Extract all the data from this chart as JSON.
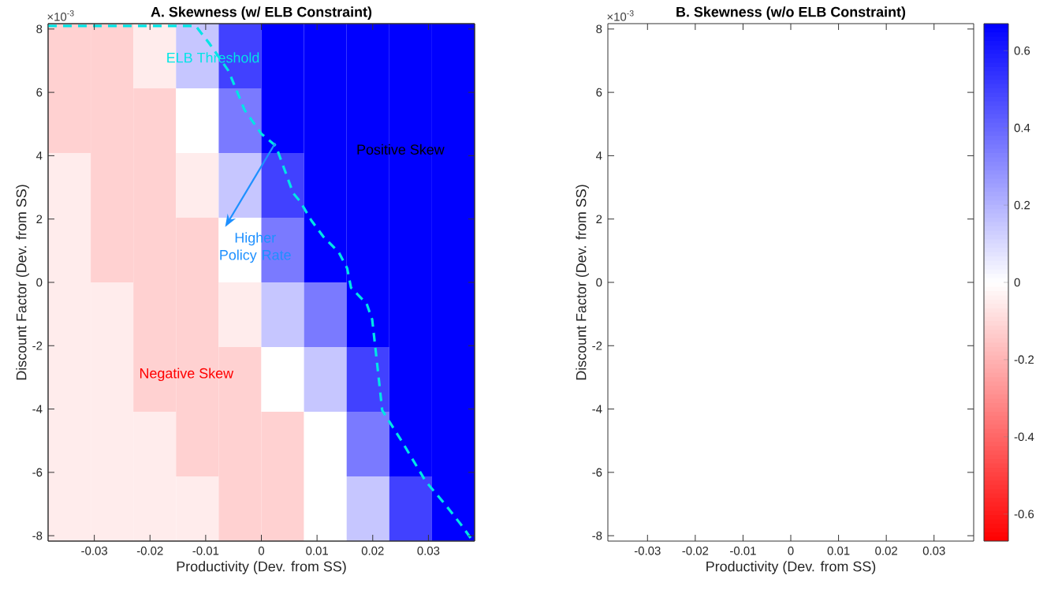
{
  "chart_data": [
    {
      "type": "heatmap",
      "categories": [
        null,
        null,
        null,
        null,
        null,
        null,
        null,
        null,
        null,
        null
      ],
      "y_categories": [
        null,
        null,
        null,
        null,
        null,
        null,
        null,
        null
      ],
      "clim": [
        -0.67,
        0.67
      ],
      "cticks": [
        -0.6,
        -0.4,
        -0.2,
        0,
        0.2,
        0.4,
        0.6
      ],
      "cells": [
        [
          -0.12,
          -0.12,
          -0.05,
          0.15,
          0.5,
          0.67,
          0.67,
          0.67,
          0.67,
          0.67
        ],
        [
          -0.12,
          -0.12,
          -0.12,
          0,
          0.35,
          0.67,
          0.67,
          0.67,
          0.67,
          0.67
        ],
        [
          -0.05,
          -0.12,
          -0.12,
          -0.05,
          0.15,
          0.5,
          0.67,
          0.67,
          0.67,
          0.67
        ],
        [
          -0.05,
          -0.12,
          -0.12,
          -0.12,
          0,
          0.35,
          0.67,
          0.67,
          0.67,
          0.67
        ],
        [
          -0.05,
          -0.05,
          -0.12,
          -0.12,
          -0.05,
          0.15,
          0.35,
          0.67,
          0.67,
          0.67
        ],
        [
          -0.05,
          -0.05,
          -0.12,
          -0.12,
          -0.12,
          0,
          0.15,
          0.5,
          0.67,
          0.67
        ],
        [
          -0.05,
          -0.05,
          -0.05,
          -0.12,
          -0.12,
          -0.12,
          0,
          0.35,
          0.67,
          0.67
        ],
        [
          -0.05,
          -0.05,
          -0.05,
          -0.05,
          -0.12,
          -0.12,
          0,
          0.15,
          0.5,
          0.67
        ]
      ]
    },
    {
      "type": "line",
      "title": "A. Skewness (w/ ELB Constraint)",
      "xlabel": "Productivity (Dev. from SS)",
      "ylabel": "Discount Factor (Dev. from SS)",
      "xlim": [
        -0.0383,
        0.0383
      ],
      "ylim": [
        -8.17,
        8.17
      ],
      "xticks": [
        -0.03,
        -0.02,
        -0.01,
        0,
        0.01,
        0.02,
        0.03
      ],
      "yticks": [
        -8,
        -6,
        -4,
        -2,
        0,
        2,
        4,
        6,
        8
      ],
      "series": [
        {
          "color": "#00e5e5",
          "line_style": "dashed",
          "marker": "none",
          "x": [
            -0.0383,
            -0.0118,
            -0.0094,
            -0.0059,
            -0.003,
            0.0,
            0.0026,
            0.0057,
            0.0069,
            0.009,
            0.0111,
            0.0139,
            0.0154,
            0.0161,
            0.0175,
            0.0189,
            0.0199,
            0.0207,
            0.0217,
            0.0253,
            0.0295,
            0.0331,
            0.0359,
            0.0377
          ],
          "values": [
            8.1,
            8.1,
            7.56,
            6.68,
            5.44,
            4.69,
            4.31,
            2.82,
            2.57,
            1.95,
            1.45,
            0.95,
            0.45,
            -0.17,
            -0.42,
            -0.67,
            -1.17,
            -2.42,
            -4.04,
            -5.04,
            -6.28,
            -7.03,
            -7.66,
            -8.1
          ]
        }
      ],
      "annotations": [
        "×10$^{-3}$",
        {
          "text": "ELB Threshold",
          "x": -0.0087,
          "y": 7.1
        },
        "Positive Skew",
        {
          "text": "Higher Policy Rate",
          "x": 0.0025,
          "y": 4.4
        },
        "Negative Skew"
      ]
    },
    {
      "type": "heatmap",
      "title": "B. Skewness (w/o ELB Constraint)",
      "xlabel": "Productivity (Dev. from SS)",
      "ylabel": "Discount Factor (Dev. from SS)",
      "xlim": [
        -0.0383,
        0.0383
      ],
      "ylim": [
        -8.17,
        8.17
      ],
      "xticks": [
        -0.03,
        -0.02,
        -0.01,
        0,
        0.01,
        0.02,
        0.03
      ],
      "yticks": [
        -8,
        -6,
        -4,
        -2,
        0,
        2,
        4,
        6,
        8
      ],
      "annotations": [
        "×10$^{-3}$"
      ]
    }
  ]
}
